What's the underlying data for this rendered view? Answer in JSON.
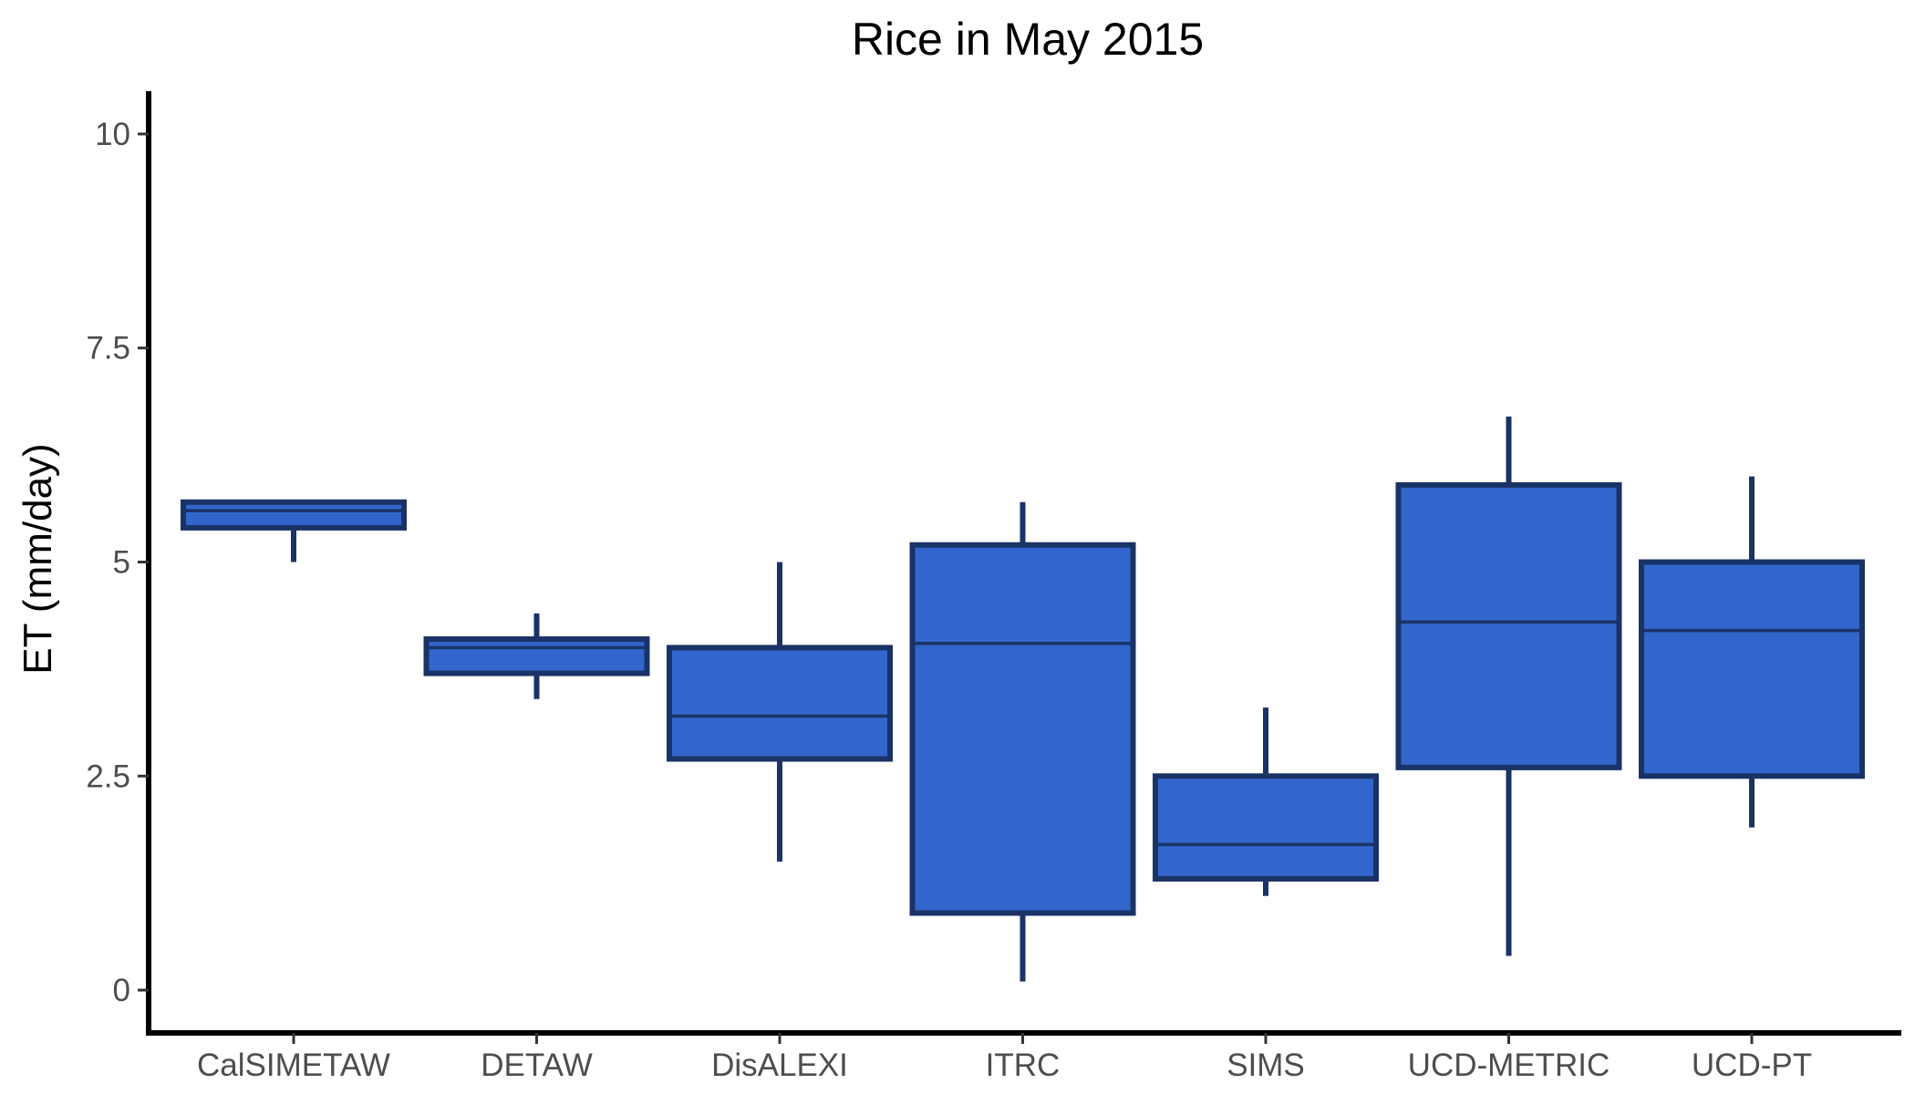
{
  "chart_data": {
    "type": "boxplot",
    "title": "Rice in May 2015",
    "xlabel": "",
    "ylabel": "ET (mm/day)",
    "ylim": [
      -0.5,
      10.5
    ],
    "yticks": [
      0,
      2.5,
      5,
      7.5,
      10
    ],
    "ytick_labels": [
      "0",
      "2.5",
      "5",
      "7.5",
      "10"
    ],
    "grid": false,
    "legend": "none",
    "fill_color": "#3366cc",
    "line_color": "#1a3366",
    "categories": [
      "CalSIMETAW",
      "DETAW",
      "DisALEXI",
      "ITRC",
      "SIMS",
      "UCD-METRIC",
      "UCD-PT"
    ],
    "boxes": [
      {
        "min": 5.0,
        "q1": 5.4,
        "median": 5.6,
        "q3": 5.7,
        "max": 5.7
      },
      {
        "min": 3.4,
        "q1": 3.7,
        "median": 4.0,
        "q3": 4.1,
        "max": 4.4
      },
      {
        "min": 1.5,
        "q1": 2.7,
        "median": 3.2,
        "q3": 4.0,
        "max": 5.0
      },
      {
        "min": 0.1,
        "q1": 0.9,
        "median": 4.05,
        "q3": 5.2,
        "max": 5.7
      },
      {
        "min": 1.1,
        "q1": 1.3,
        "median": 1.7,
        "q3": 2.5,
        "max": 3.3
      },
      {
        "min": 0.4,
        "q1": 2.6,
        "median": 4.3,
        "q3": 5.9,
        "max": 6.7
      },
      {
        "min": 1.9,
        "q1": 2.5,
        "median": 4.2,
        "q3": 5.0,
        "max": 6.0
      }
    ]
  }
}
